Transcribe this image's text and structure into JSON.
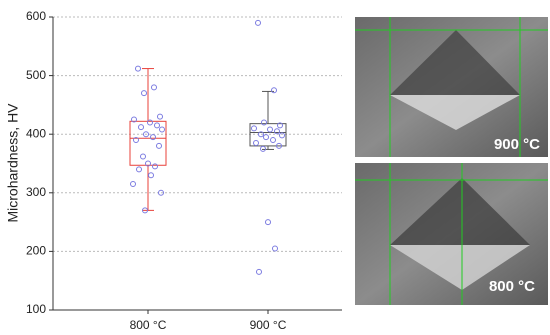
{
  "chart_data": {
    "type": "box",
    "y_label": "Microhardness, HV",
    "categories": [
      "800 °C",
      "900 °C"
    ],
    "boxes": [
      {
        "whisker_low": 270,
        "q1": 347,
        "median": 393,
        "q3": 422,
        "whisker_high": 512,
        "color": "#e8413a",
        "points": [
          512,
          480,
          470,
          430,
          425,
          420,
          415,
          412,
          408,
          400,
          395,
          390,
          380,
          362,
          350,
          345,
          340,
          330,
          315,
          300,
          270
        ]
      },
      {
        "whisker_low": 374,
        "q1": 380,
        "median": 403,
        "q3": 418,
        "whisker_high": 473,
        "color": "#555555",
        "points": [
          590,
          475,
          420,
          415,
          410,
          408,
          405,
          400,
          398,
          395,
          390,
          385,
          380,
          375,
          250,
          205,
          165
        ]
      }
    ],
    "point_color": "#7b7be0",
    "ylim": [
      100,
      600
    ],
    "yticks": [
      100,
      200,
      300,
      400,
      500,
      600
    ],
    "grid": true
  },
  "images": [
    {
      "label": "900 °C"
    },
    {
      "label": "800 °C"
    }
  ]
}
